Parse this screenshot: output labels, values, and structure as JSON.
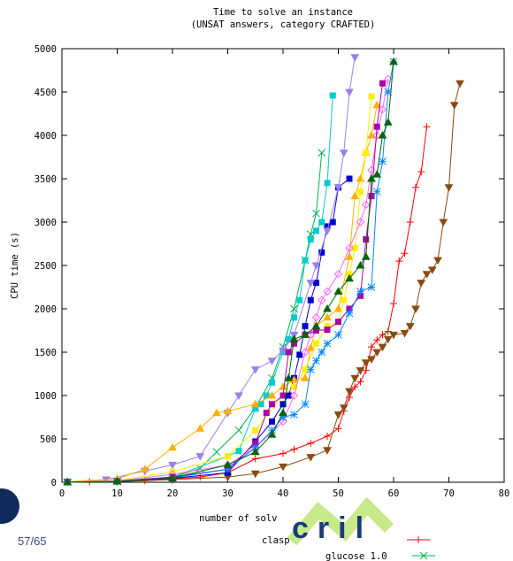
{
  "chart_data": {
    "type": "line",
    "title": "Time to solve an instance",
    "subtitle": "(UNSAT answers, category CRAFTED)",
    "xlabel": "number of solv",
    "ylabel": "CPU time (s)",
    "xlim": [
      0,
      80
    ],
    "ylim": [
      0,
      5000
    ],
    "x_ticks": [
      "0",
      "10",
      "20",
      "30",
      "40",
      "50",
      "60",
      "70",
      "80"
    ],
    "y_ticks": [
      "0",
      "500",
      "1000",
      "1500",
      "2000",
      "2500",
      "3000",
      "3500",
      "4000",
      "4500",
      "5000"
    ],
    "legend_visible": [
      "clasp",
      "glucose 1.0"
    ],
    "series": [
      {
        "name": "clasp",
        "color": "#ff0000",
        "marker": "plus",
        "values": [
          [
            1,
            2
          ],
          [
            5,
            5
          ],
          [
            10,
            12
          ],
          [
            15,
            18
          ],
          [
            20,
            40
          ],
          [
            25,
            60
          ],
          [
            30,
            110
          ],
          [
            35,
            270
          ],
          [
            40,
            330
          ],
          [
            42,
            380
          ],
          [
            45,
            450
          ],
          [
            48,
            530
          ],
          [
            50,
            620
          ],
          [
            51,
            820
          ],
          [
            52,
            980
          ],
          [
            53,
            1100
          ],
          [
            54,
            1160
          ],
          [
            55,
            1290
          ],
          [
            56,
            1560
          ],
          [
            57,
            1640
          ],
          [
            58,
            1700
          ],
          [
            59,
            1740
          ],
          [
            60,
            2060
          ],
          [
            61,
            2550
          ],
          [
            62,
            2640
          ],
          [
            63,
            3000
          ],
          [
            64,
            3400
          ],
          [
            65,
            3580
          ],
          [
            66,
            4100
          ]
        ]
      },
      {
        "name": "glucose 1.0",
        "color": "#00b050",
        "marker": "x",
        "values": [
          [
            1,
            3
          ],
          [
            10,
            10
          ],
          [
            20,
            55
          ],
          [
            25,
            160
          ],
          [
            28,
            350
          ],
          [
            32,
            600
          ],
          [
            35,
            860
          ],
          [
            38,
            1200
          ],
          [
            40,
            1560
          ],
          [
            42,
            2000
          ],
          [
            44,
            2560
          ],
          [
            45,
            2860
          ],
          [
            46,
            3100
          ],
          [
            47,
            3800
          ]
        ]
      },
      {
        "color": "#8b4a10",
        "marker": "tri-down",
        "values": [
          [
            1,
            2
          ],
          [
            10,
            6
          ],
          [
            20,
            30
          ],
          [
            30,
            60
          ],
          [
            35,
            100
          ],
          [
            40,
            180
          ],
          [
            45,
            290
          ],
          [
            48,
            370
          ],
          [
            50,
            780
          ],
          [
            51,
            860
          ],
          [
            52,
            1050
          ],
          [
            53,
            1200
          ],
          [
            54,
            1290
          ],
          [
            55,
            1380
          ],
          [
            56,
            1420
          ],
          [
            57,
            1500
          ],
          [
            58,
            1560
          ],
          [
            59,
            1650
          ],
          [
            60,
            1700
          ],
          [
            62,
            1720
          ],
          [
            63,
            1800
          ],
          [
            64,
            2000
          ],
          [
            65,
            2300
          ],
          [
            66,
            2400
          ],
          [
            67,
            2450
          ],
          [
            68,
            2560
          ],
          [
            69,
            3000
          ],
          [
            70,
            3400
          ],
          [
            71,
            4350
          ],
          [
            72,
            4600
          ]
        ]
      },
      {
        "color": "#0000cc",
        "marker": "square",
        "values": [
          [
            1,
            3
          ],
          [
            10,
            12
          ],
          [
            20,
            45
          ],
          [
            30,
            110
          ],
          [
            35,
            470
          ],
          [
            38,
            700
          ],
          [
            40,
            900
          ],
          [
            41,
            1000
          ],
          [
            42,
            1200
          ],
          [
            43,
            1470
          ],
          [
            44,
            1800
          ],
          [
            45,
            2100
          ],
          [
            46,
            2300
          ],
          [
            47,
            2650
          ],
          [
            48,
            2950
          ],
          [
            49,
            3000
          ],
          [
            50,
            3400
          ],
          [
            52,
            3500
          ]
        ]
      },
      {
        "color": "#00cccc",
        "marker": "square",
        "values": [
          [
            1,
            3
          ],
          [
            10,
            15
          ],
          [
            20,
            60
          ],
          [
            30,
            300
          ],
          [
            32,
            360
          ],
          [
            35,
            850
          ],
          [
            36,
            900
          ],
          [
            37,
            1000
          ],
          [
            38,
            1150
          ],
          [
            40,
            1500
          ],
          [
            41,
            1650
          ],
          [
            42,
            1900
          ],
          [
            43,
            2100
          ],
          [
            44,
            2560
          ],
          [
            45,
            2800
          ],
          [
            46,
            2900
          ],
          [
            47,
            3000
          ],
          [
            48,
            3450
          ],
          [
            49,
            4460
          ]
        ]
      },
      {
        "color": "#9a7ff0",
        "marker": "tri-down",
        "values": [
          [
            1,
            5
          ],
          [
            8,
            30
          ],
          [
            15,
            130
          ],
          [
            20,
            200
          ],
          [
            25,
            300
          ],
          [
            30,
            800
          ],
          [
            32,
            1000
          ],
          [
            35,
            1300
          ],
          [
            38,
            1400
          ],
          [
            40,
            1520
          ],
          [
            42,
            1700
          ],
          [
            45,
            2300
          ],
          [
            46,
            2500
          ],
          [
            48,
            2900
          ],
          [
            50,
            3400
          ],
          [
            51,
            3800
          ],
          [
            52,
            4500
          ],
          [
            53,
            4900
          ]
        ]
      },
      {
        "color": "#ffb000",
        "marker": "tri-up",
        "values": [
          [
            1,
            5
          ],
          [
            10,
            40
          ],
          [
            15,
            150
          ],
          [
            20,
            400
          ],
          [
            25,
            620
          ],
          [
            28,
            800
          ],
          [
            30,
            820
          ],
          [
            35,
            900
          ],
          [
            38,
            1000
          ],
          [
            40,
            1100
          ],
          [
            42,
            1180
          ],
          [
            44,
            1200
          ],
          [
            45,
            1550
          ],
          [
            46,
            1800
          ],
          [
            48,
            1900
          ],
          [
            50,
            2000
          ],
          [
            52,
            2600
          ],
          [
            53,
            3300
          ],
          [
            54,
            3500
          ],
          [
            55,
            3800
          ],
          [
            56,
            4000
          ],
          [
            57,
            4350
          ]
        ]
      },
      {
        "color": "#ffee00",
        "marker": "square",
        "values": [
          [
            1,
            3
          ],
          [
            10,
            20
          ],
          [
            20,
            120
          ],
          [
            30,
            300
          ],
          [
            35,
            600
          ],
          [
            40,
            1000
          ],
          [
            42,
            1100
          ],
          [
            44,
            1300
          ],
          [
            46,
            1600
          ],
          [
            48,
            1800
          ],
          [
            50,
            1850
          ],
          [
            51,
            2100
          ],
          [
            52,
            2400
          ],
          [
            53,
            2700
          ],
          [
            54,
            3350
          ],
          [
            55,
            3800
          ],
          [
            56,
            4450
          ]
        ]
      },
      {
        "color": "#ff66ff",
        "marker": "diamond",
        "values": [
          [
            1,
            3
          ],
          [
            10,
            15
          ],
          [
            20,
            90
          ],
          [
            30,
            200
          ],
          [
            35,
            400
          ],
          [
            40,
            700
          ],
          [
            42,
            1000
          ],
          [
            44,
            1500
          ],
          [
            45,
            1700
          ],
          [
            46,
            1900
          ],
          [
            47,
            2100
          ],
          [
            48,
            2200
          ],
          [
            50,
            2400
          ],
          [
            52,
            2700
          ],
          [
            54,
            3000
          ],
          [
            55,
            3200
          ],
          [
            56,
            3600
          ],
          [
            57,
            4000
          ],
          [
            58,
            4300
          ],
          [
            59,
            4650
          ]
        ]
      },
      {
        "color": "#aa00aa",
        "marker": "square",
        "values": [
          [
            1,
            3
          ],
          [
            10,
            12
          ],
          [
            20,
            60
          ],
          [
            30,
            150
          ],
          [
            35,
            450
          ],
          [
            37,
            800
          ],
          [
            38,
            900
          ],
          [
            40,
            1000
          ],
          [
            41,
            1500
          ],
          [
            42,
            1600
          ],
          [
            44,
            1700
          ],
          [
            46,
            1750
          ],
          [
            48,
            1760
          ],
          [
            50,
            1850
          ],
          [
            52,
            2000
          ],
          [
            54,
            2150
          ],
          [
            55,
            2800
          ],
          [
            56,
            3300
          ],
          [
            57,
            4100
          ],
          [
            58,
            4600
          ]
        ]
      },
      {
        "color": "#0088ff",
        "marker": "star",
        "values": [
          [
            1,
            3
          ],
          [
            10,
            10
          ],
          [
            20,
            50
          ],
          [
            30,
            150
          ],
          [
            35,
            400
          ],
          [
            38,
            600
          ],
          [
            40,
            750
          ],
          [
            42,
            780
          ],
          [
            44,
            900
          ],
          [
            45,
            1300
          ],
          [
            46,
            1400
          ],
          [
            47,
            1500
          ],
          [
            48,
            1600
          ],
          [
            50,
            1700
          ],
          [
            52,
            1950
          ],
          [
            54,
            2200
          ],
          [
            56,
            2250
          ],
          [
            57,
            3350
          ],
          [
            58,
            3700
          ],
          [
            59,
            4500
          ],
          [
            60,
            4850
          ]
        ]
      },
      {
        "color": "#006600",
        "marker": "tri-up",
        "values": [
          [
            1,
            3
          ],
          [
            10,
            10
          ],
          [
            20,
            50
          ],
          [
            30,
            200
          ],
          [
            35,
            350
          ],
          [
            38,
            550
          ],
          [
            40,
            800
          ],
          [
            41,
            1200
          ],
          [
            42,
            1650
          ],
          [
            44,
            1700
          ],
          [
            46,
            1800
          ],
          [
            48,
            2000
          ],
          [
            50,
            2200
          ],
          [
            52,
            2350
          ],
          [
            54,
            2500
          ],
          [
            55,
            2600
          ],
          [
            56,
            3500
          ],
          [
            57,
            3550
          ],
          [
            58,
            4000
          ],
          [
            59,
            4150
          ],
          [
            60,
            4850
          ]
        ]
      }
    ]
  },
  "slide": {
    "page": "57/65"
  },
  "logo": {
    "text": "cril"
  }
}
